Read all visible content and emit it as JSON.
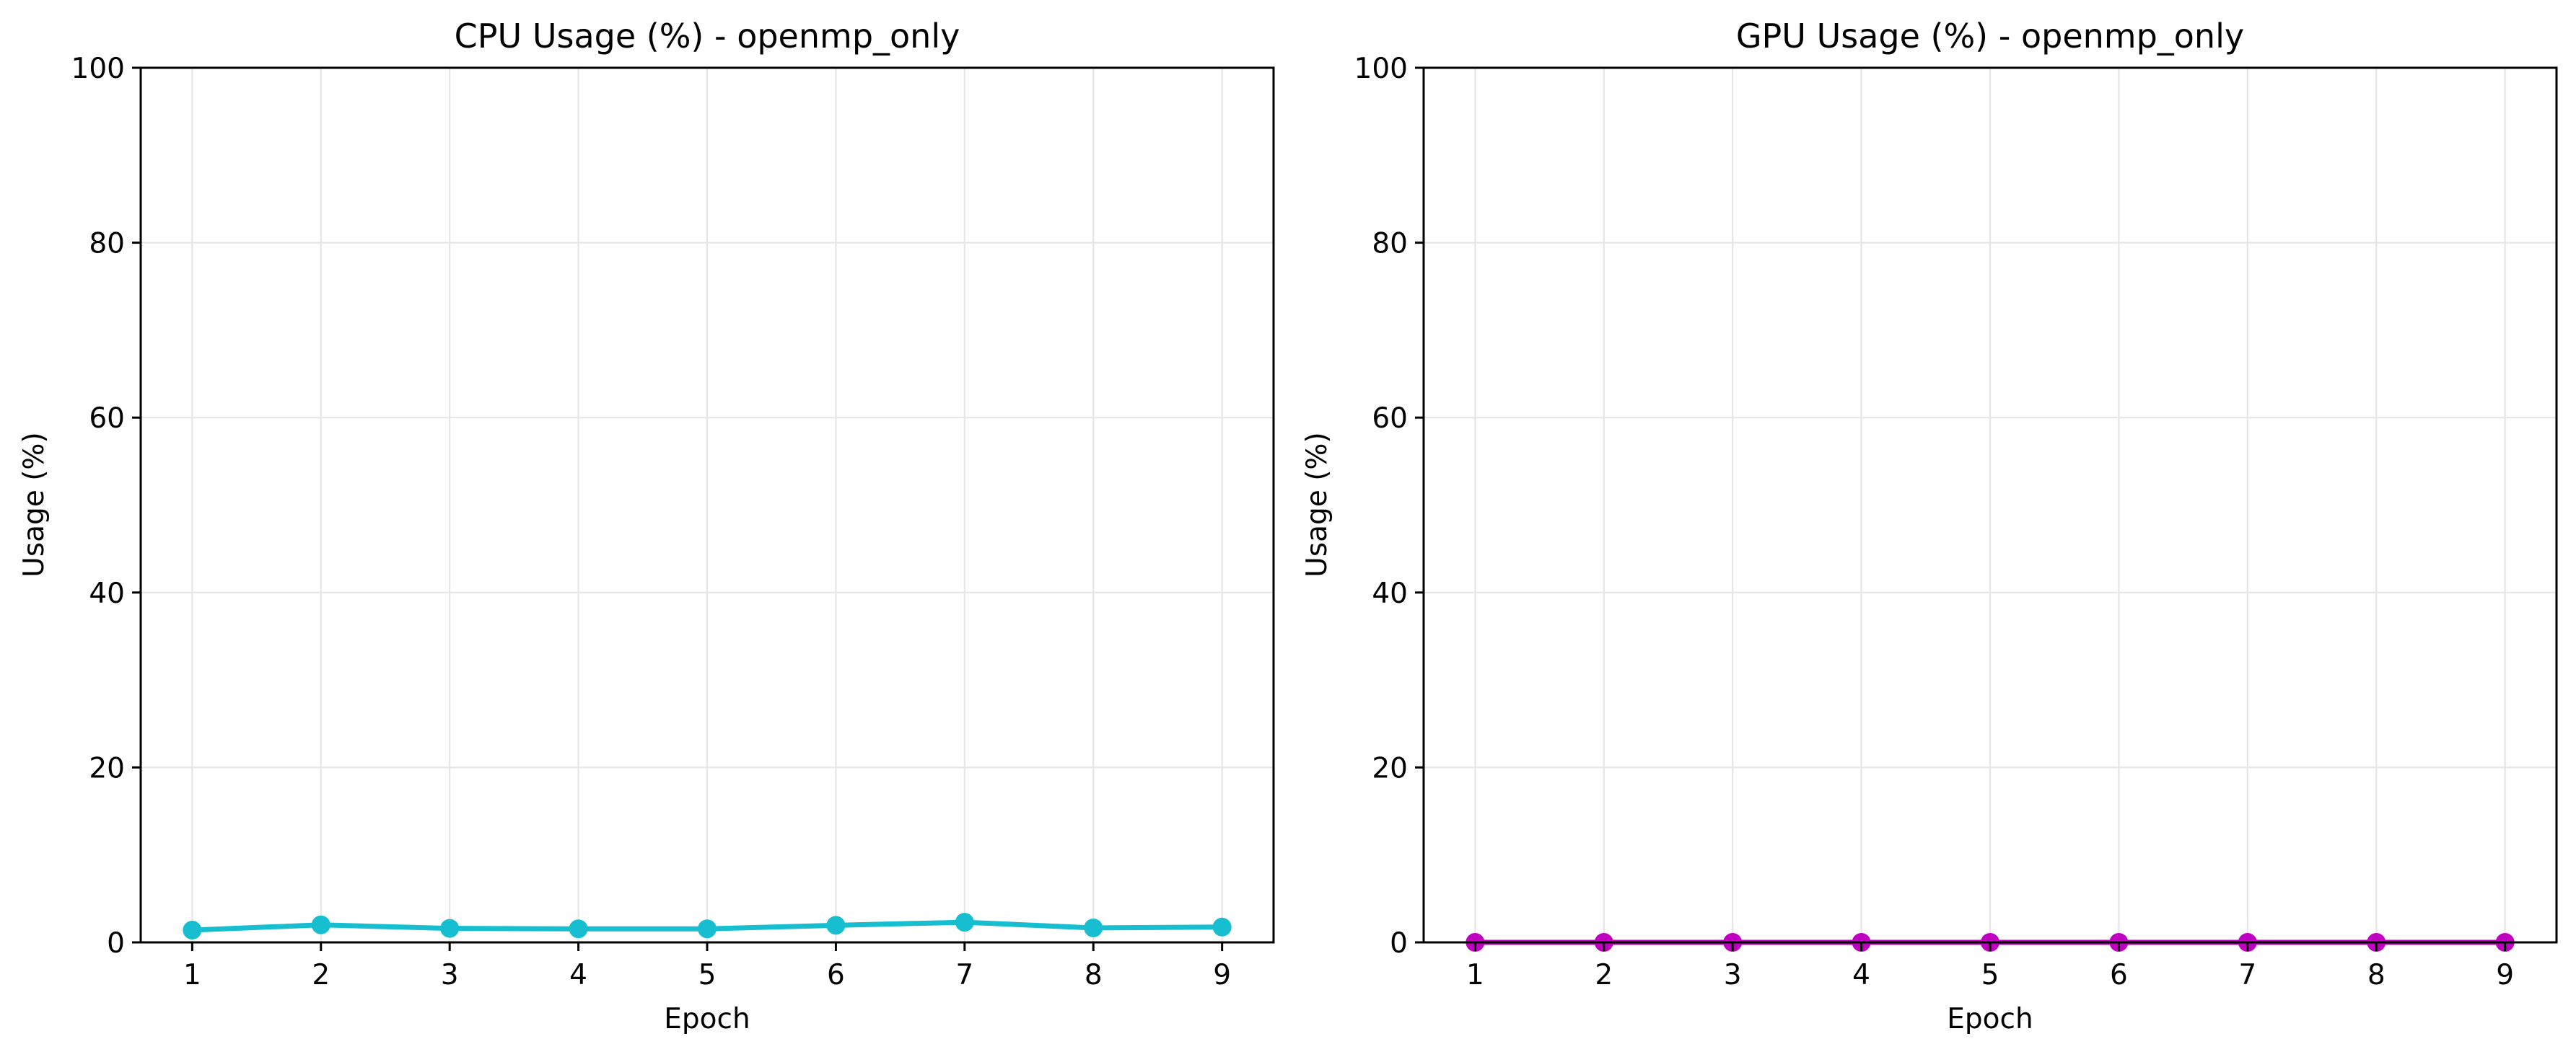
{
  "chart_data": [
    {
      "type": "line",
      "title": "CPU Usage (%) - openmp_only",
      "xlabel": "Epoch",
      "ylabel": "Usage (%)",
      "x": [
        1,
        2,
        3,
        4,
        5,
        6,
        7,
        8,
        9
      ],
      "xlim": [
        0.6,
        9.4
      ],
      "ylim": [
        0,
        100
      ],
      "xticks": [
        "1",
        "2",
        "3",
        "4",
        "5",
        "6",
        "7",
        "8",
        "9"
      ],
      "yticks": [
        "0",
        "20",
        "40",
        "60",
        "80",
        "100"
      ],
      "grid": true,
      "color": "#17becf",
      "marker": "circle",
      "series": [
        {
          "values": [
            1.4,
            2.0,
            1.6,
            1.55,
            1.55,
            1.95,
            2.3,
            1.65,
            1.75
          ]
        }
      ]
    },
    {
      "type": "line",
      "title": "GPU Usage (%) - openmp_only",
      "xlabel": "Epoch",
      "ylabel": "Usage (%)",
      "x": [
        1,
        2,
        3,
        4,
        5,
        6,
        7,
        8,
        9
      ],
      "xlim": [
        0.6,
        9.4
      ],
      "ylim": [
        0,
        100
      ],
      "xticks": [
        "1",
        "2",
        "3",
        "4",
        "5",
        "6",
        "7",
        "8",
        "9"
      ],
      "yticks": [
        "0",
        "20",
        "40",
        "60",
        "80",
        "100"
      ],
      "grid": true,
      "color": "#c000c0",
      "marker": "circle",
      "series": [
        {
          "values": [
            0,
            0,
            0,
            0,
            0,
            0,
            0,
            0,
            0
          ]
        }
      ]
    }
  ]
}
